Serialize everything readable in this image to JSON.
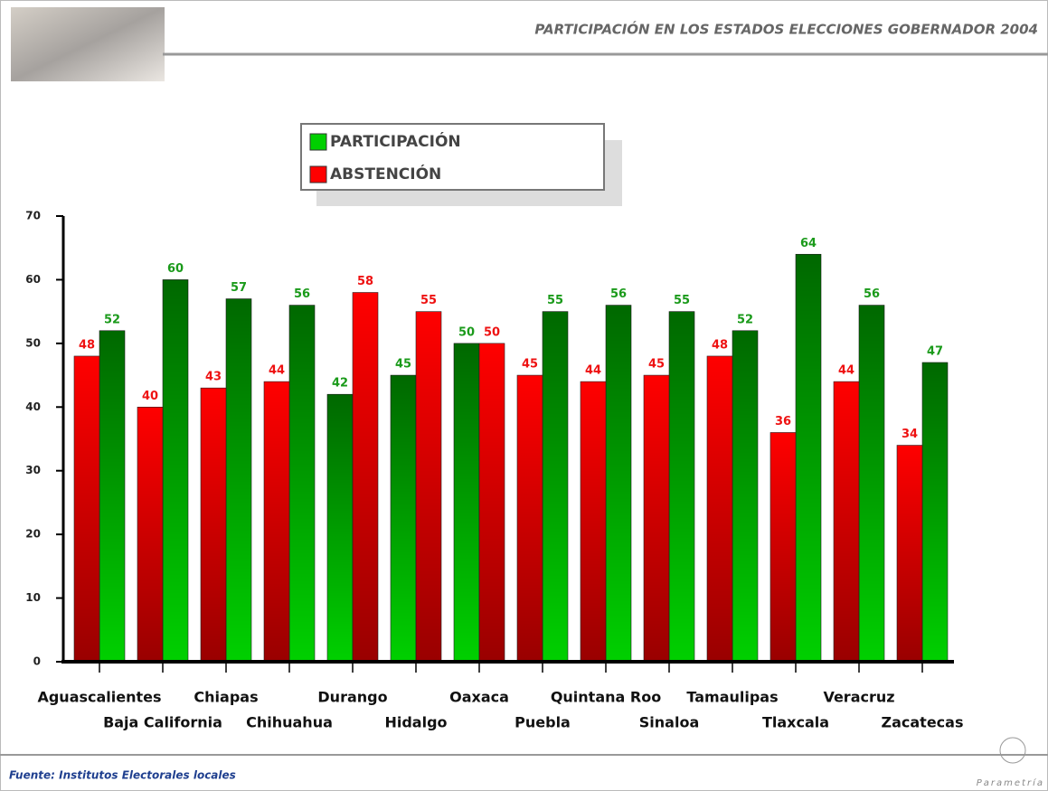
{
  "chart_data": {
    "type": "bar",
    "title": "PARTICIPACIÓN EN LOS ESTADOS ELECCIONES GOBERNADOR 2004",
    "categories": [
      "Aguascalientes",
      "Baja California",
      "Chiapas",
      "Chihuahua",
      "Durango",
      "Hidalgo",
      "Oaxaca",
      "Puebla",
      "Quintana Roo",
      "Sinaloa",
      "Tamaulipas",
      "Tlaxcala",
      "Veracruz",
      "Zacatecas"
    ],
    "series": [
      {
        "name": "PARTICIPACIÓN",
        "color": "#00d000",
        "values": [
          52,
          60,
          57,
          56,
          42,
          45,
          50,
          55,
          56,
          55,
          52,
          64,
          56,
          47
        ]
      },
      {
        "name": "ABSTENCIÓN",
        "color": "#ff0000",
        "values": [
          48,
          40,
          43,
          44,
          58,
          55,
          50,
          45,
          44,
          45,
          48,
          36,
          44,
          34
        ]
      }
    ],
    "ylim": [
      0,
      70
    ],
    "yticks": [
      0,
      10,
      20,
      30,
      40,
      50,
      60,
      70
    ],
    "source": "Fuente: Institutos Electorales locales",
    "logo": "Parametría"
  }
}
